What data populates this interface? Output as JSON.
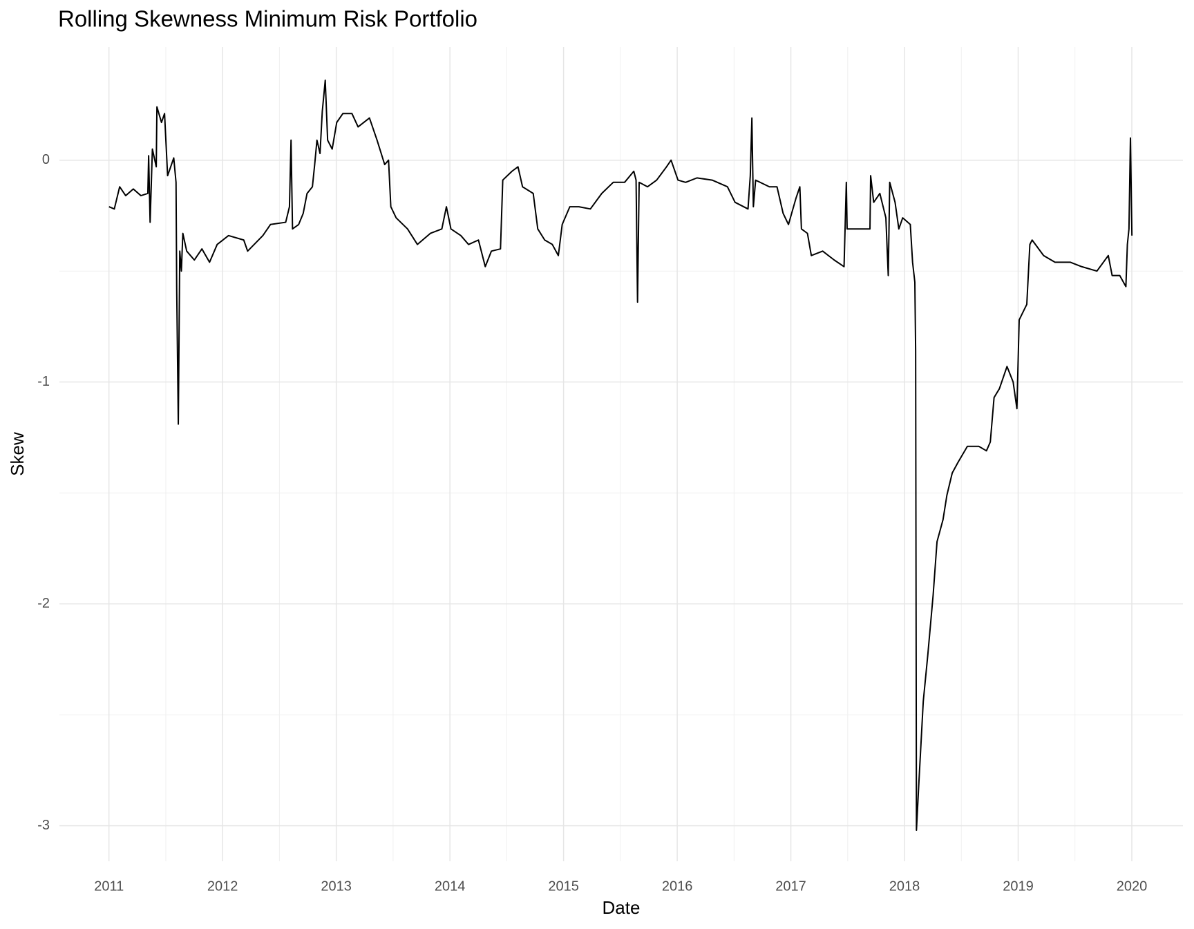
{
  "chart_data": {
    "type": "line",
    "title": "Rolling Skewness Minimum Risk Portfolio",
    "x_label": "Date",
    "y_label": "Skew",
    "xlim": [
      2010.564,
      2020.45
    ],
    "ylim": [
      -3.16,
      0.51
    ],
    "xticks": [
      2011,
      2012,
      2013,
      2014,
      2015,
      2016,
      2017,
      2018,
      2019,
      2020
    ],
    "yticks": [
      -3,
      -2,
      -1,
      0
    ],
    "grid": true,
    "x": [
      2011.0,
      2011.047,
      2011.094,
      2011.147,
      2011.214,
      2011.281,
      2011.342,
      2011.349,
      2011.362,
      2011.382,
      2011.416,
      2011.422,
      2011.462,
      2011.489,
      2011.516,
      2011.57,
      2011.59,
      2011.596,
      2011.61,
      2011.623,
      2011.637,
      2011.65,
      2011.684,
      2011.751,
      2011.818,
      2011.885,
      2011.952,
      2012.052,
      2012.186,
      2012.22,
      2012.354,
      2012.421,
      2012.555,
      2012.588,
      2012.602,
      2012.615,
      2012.669,
      2012.709,
      2012.743,
      2012.79,
      2012.81,
      2012.83,
      2012.857,
      2012.877,
      2012.903,
      2012.924,
      2012.964,
      2013.004,
      2013.058,
      2013.138,
      2013.192,
      2013.292,
      2013.359,
      2013.426,
      2013.46,
      2013.48,
      2013.527,
      2013.627,
      2013.714,
      2013.828,
      2013.929,
      2013.969,
      2014.009,
      2014.096,
      2014.164,
      2014.251,
      2014.311,
      2014.365,
      2014.445,
      2014.465,
      2014.546,
      2014.599,
      2014.639,
      2014.733,
      2014.773,
      2014.834,
      2014.901,
      2014.954,
      2014.988,
      2015.055,
      2015.135,
      2015.236,
      2015.336,
      2015.437,
      2015.537,
      2015.618,
      2015.638,
      2015.651,
      2015.665,
      2015.739,
      2015.819,
      2015.906,
      2015.946,
      2016.007,
      2016.074,
      2016.174,
      2016.308,
      2016.442,
      2016.509,
      2016.623,
      2016.643,
      2016.657,
      2016.67,
      2016.69,
      2016.811,
      2016.878,
      2016.932,
      2016.979,
      2017.046,
      2017.079,
      2017.093,
      2017.146,
      2017.18,
      2017.28,
      2017.381,
      2017.468,
      2017.488,
      2017.495,
      2017.615,
      2017.696,
      2017.702,
      2017.729,
      2017.783,
      2017.836,
      2017.857,
      2017.87,
      2017.917,
      2017.95,
      2017.984,
      2018.051,
      2018.071,
      2018.091,
      2018.098,
      2018.105,
      2018.125,
      2018.165,
      2018.205,
      2018.252,
      2018.286,
      2018.339,
      2018.373,
      2018.42,
      2018.473,
      2018.553,
      2018.654,
      2018.721,
      2018.755,
      2018.788,
      2018.835,
      2018.902,
      2018.956,
      2018.989,
      2019.009,
      2019.076,
      2019.103,
      2019.123,
      2019.224,
      2019.324,
      2019.458,
      2019.559,
      2019.693,
      2019.793,
      2019.827,
      2019.894,
      2019.948,
      2019.961,
      2019.975,
      2019.988,
      2020.001
    ],
    "series": [
      {
        "name": "Skew",
        "color": "#000000",
        "values": [
          -0.21,
          -0.22,
          -0.12,
          -0.16,
          -0.13,
          -0.16,
          -0.15,
          0.02,
          -0.28,
          0.05,
          -0.03,
          0.24,
          0.17,
          0.21,
          -0.07,
          0.01,
          -0.1,
          -0.58,
          -1.19,
          -0.41,
          -0.5,
          -0.33,
          -0.41,
          -0.45,
          -0.4,
          -0.46,
          -0.38,
          -0.34,
          -0.36,
          -0.41,
          -0.34,
          -0.29,
          -0.28,
          -0.21,
          0.09,
          -0.31,
          -0.29,
          -0.24,
          -0.15,
          -0.12,
          -0.02,
          0.09,
          0.03,
          0.22,
          0.36,
          0.09,
          0.05,
          0.17,
          0.21,
          0.21,
          0.15,
          0.19,
          0.09,
          -0.02,
          0,
          -0.21,
          -0.26,
          -0.31,
          -0.38,
          -0.33,
          -0.31,
          -0.21,
          -0.31,
          -0.34,
          -0.38,
          -0.36,
          -0.48,
          -0.41,
          -0.4,
          -0.09,
          -0.05,
          -0.03,
          -0.12,
          -0.15,
          -0.31,
          -0.36,
          -0.38,
          -0.43,
          -0.29,
          -0.21,
          -0.21,
          -0.22,
          -0.15,
          -0.1,
          -0.1,
          -0.05,
          -0.09,
          -0.64,
          -0.1,
          -0.12,
          -0.09,
          -0.03,
          0,
          -0.09,
          -0.1,
          -0.08,
          -0.09,
          -0.12,
          -0.19,
          -0.22,
          -0.07,
          0.19,
          -0.21,
          -0.09,
          -0.12,
          -0.12,
          -0.24,
          -0.29,
          -0.17,
          -0.12,
          -0.31,
          -0.33,
          -0.43,
          -0.41,
          -0.45,
          -0.48,
          -0.1,
          -0.31,
          -0.31,
          -0.31,
          -0.07,
          -0.19,
          -0.15,
          -0.26,
          -0.52,
          -0.1,
          -0.19,
          -0.31,
          -0.26,
          -0.29,
          -0.46,
          -0.55,
          -0.86,
          -3.02,
          -2.82,
          -2.44,
          -2.23,
          -1.96,
          -1.72,
          -1.62,
          -1.51,
          -1.41,
          -1.36,
          -1.29,
          -1.29,
          -1.31,
          -1.27,
          -1.07,
          -1.03,
          -0.93,
          -1.0,
          -1.12,
          -0.72,
          -0.65,
          -0.38,
          -0.36,
          -0.43,
          -0.46,
          -0.46,
          -0.48,
          -0.5,
          -0.43,
          -0.52,
          -0.52,
          -0.57,
          -0.38,
          -0.31,
          0.1,
          -0.34
        ]
      }
    ]
  }
}
